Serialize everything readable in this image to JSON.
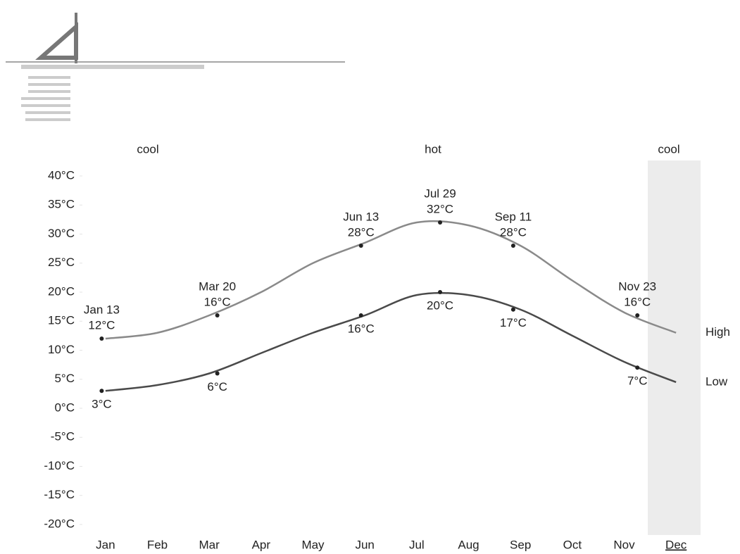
{
  "chart_data": {
    "type": "line",
    "categories": [
      "Jan",
      "Feb",
      "Mar",
      "Apr",
      "May",
      "Jun",
      "Jul",
      "Aug",
      "Sep",
      "Oct",
      "Nov",
      "Dec"
    ],
    "series": [
      {
        "name": "High",
        "color": "#8a8a8a",
        "values": [
          12,
          13,
          16,
          20,
          25,
          28.5,
          32,
          31.5,
          28,
          22,
          16.5,
          13
        ]
      },
      {
        "name": "Low",
        "color": "#4a4a4a",
        "values": [
          3,
          4,
          6,
          9.5,
          13,
          16,
          19.5,
          19.5,
          17,
          12.5,
          8,
          4.5
        ]
      }
    ],
    "ylim": [
      -20,
      40
    ],
    "yticks": [
      {
        "value": 40,
        "label": "40°C"
      },
      {
        "value": 35,
        "label": "35°C"
      },
      {
        "value": 30,
        "label": "30°C"
      },
      {
        "value": 25,
        "label": "25°C"
      },
      {
        "value": 20,
        "label": "20°C"
      },
      {
        "value": 15,
        "label": "15°C"
      },
      {
        "value": 10,
        "label": "10°C"
      },
      {
        "value": 5,
        "label": "5°C"
      },
      {
        "value": 0,
        "label": "0°C"
      },
      {
        "value": -5,
        "label": "-5°C"
      },
      {
        "value": -10,
        "label": "-10°C"
      },
      {
        "value": -15,
        "label": "-15°C"
      },
      {
        "value": -20,
        "label": "-20°C"
      }
    ],
    "seasons": [
      "cool",
      "hot",
      "cool"
    ],
    "annotations": [
      {
        "date": "Jan 13",
        "value": 12,
        "value_label": "12°C",
        "series": 0
      },
      {
        "date": "Mar 20",
        "value": 16,
        "value_label": "16°C",
        "series": 0
      },
      {
        "date": "Jun 13",
        "value": 28,
        "value_label": "28°C",
        "series": 0
      },
      {
        "date": "Jul 29",
        "value": 32,
        "value_label": "32°C",
        "series": 0
      },
      {
        "date": "Sep 11",
        "value": 28,
        "value_label": "28°C",
        "series": 0
      },
      {
        "date": "Nov 23",
        "value": 16,
        "value_label": "16°C",
        "series": 0
      },
      {
        "date": "Jan 13",
        "value": 3,
        "value_label": "3°C",
        "series": 1
      },
      {
        "date": "Mar 20",
        "value": 6,
        "value_label": "6°C",
        "series": 1
      },
      {
        "date": "Jun 13",
        "value": 16,
        "value_label": "16°C",
        "series": 1
      },
      {
        "date": "Jul 29",
        "value": 20,
        "value_label": "20°C",
        "series": 1
      },
      {
        "date": "Sep 11",
        "value": 17,
        "value_label": "17°C",
        "series": 1
      },
      {
        "date": "Nov 23",
        "value": 7,
        "value_label": "7°C",
        "series": 1
      }
    ]
  }
}
